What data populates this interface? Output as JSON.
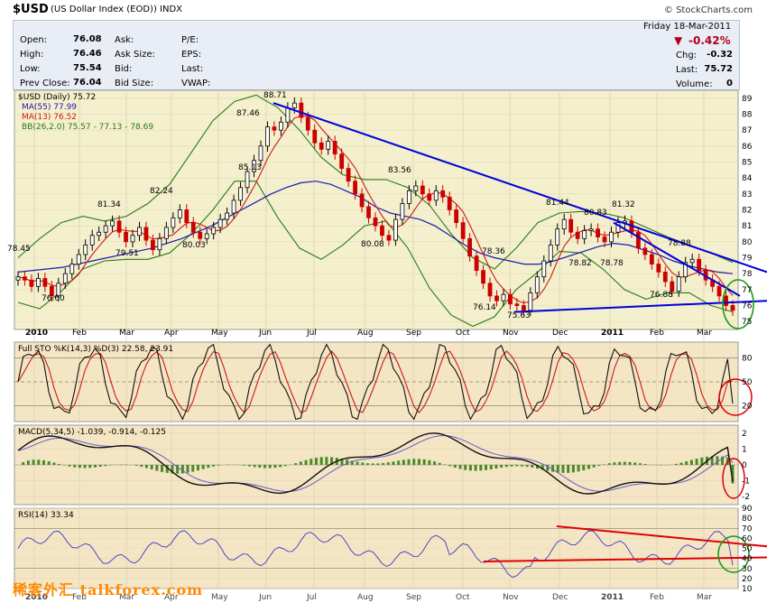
{
  "header": {
    "symbol": "$USD",
    "subtitle": "(US Dollar Index (EOD)) INDX",
    "watermark": "© StockCharts.com"
  },
  "quote": {
    "open_label": "Open:",
    "open": "76.08",
    "high_label": "High:",
    "high": "76.46",
    "low_label": "Low:",
    "low": "75.54",
    "prev_label": "Prev Close:",
    "prev": "76.04",
    "ask_label": "Ask:",
    "ask_size_label": "Ask Size:",
    "bid_label": "Bid:",
    "bid_size_label": "Bid Size:",
    "pe_label": "P/E:",
    "eps_label": "EPS:",
    "last_label2": "Last:",
    "vwap_label": "VWAP:",
    "date": "Friday  18-Mar-2011",
    "change_pct": "-0.42%",
    "chg_label": "Chg:",
    "chg": "-0.32",
    "last_label": "Last:",
    "last": "75.72",
    "volume_label": "Volume:",
    "volume": "0"
  },
  "colors": {
    "price_bg": "#f4efcc",
    "panel_bg": "#f4efcc",
    "ind_bg": "#f4e5c4",
    "up": "#000000",
    "down": "#cc0000",
    "ma55": "#1a1ab4",
    "ma13": "#cc1a1a",
    "bb": "#2a7a1a",
    "trend": "#0000dd",
    "annot": "#e00000",
    "circle_green": "#1a9a1a"
  },
  "watermark_text": "稀客外汇 talkforex.com",
  "chart_data": [
    {
      "type": "candlestick",
      "title": "$USD (Daily) 75.72",
      "legend": [
        "MA(55) 77.99",
        "MA(13) 76.52",
        "BB(26,2.0) 75.57 - 77.13 - 78.69"
      ],
      "ylim": [
        74.5,
        89.5
      ],
      "yticks": [
        75,
        76,
        77,
        78,
        79,
        80,
        81,
        82,
        83,
        84,
        85,
        86,
        87,
        88,
        89
      ],
      "x_labels": [
        "2010",
        "Feb",
        "Mar",
        "Apr",
        "May",
        "Jun",
        "Jul",
        "Aug",
        "Sep",
        "Oct",
        "Nov",
        "Dec",
        "2011",
        "Feb",
        "Mar"
      ],
      "annotations": [
        "78.45",
        "76.60",
        "81.34",
        "82.24",
        "79.51",
        "80.03",
        "87.46",
        "85.13",
        "88.71",
        "83.56",
        "80.08",
        "78.36",
        "76.14",
        "75.63",
        "81.44",
        "80.83",
        "78.82",
        "78.78",
        "81.32",
        "78.88",
        "76.88"
      ],
      "closes": [
        77.8,
        77.6,
        77.2,
        77.7,
        77.2,
        76.6,
        77.4,
        78.0,
        78.6,
        79.2,
        79.8,
        80.4,
        80.6,
        81.0,
        81.3,
        80.6,
        80.0,
        80.4,
        80.9,
        80.1,
        79.5,
        80.2,
        80.9,
        81.5,
        82.0,
        81.2,
        80.6,
        80.2,
        80.5,
        80.9,
        81.4,
        81.8,
        82.6,
        83.4,
        84.4,
        85.1,
        86.0,
        87.2,
        87.0,
        87.5,
        88.4,
        88.7,
        87.8,
        87.0,
        86.2,
        85.8,
        86.3,
        85.5,
        84.6,
        83.8,
        83.0,
        82.2,
        81.5,
        81.0,
        80.4,
        80.1,
        81.4,
        82.4,
        83.2,
        83.5,
        83.0,
        82.6,
        83.2,
        82.8,
        82.0,
        81.2,
        80.2,
        79.1,
        78.2,
        77.4,
        76.6,
        76.3,
        76.7,
        76.1,
        76.0,
        75.7,
        76.8,
        77.8,
        78.8,
        79.8,
        80.8,
        81.4,
        80.6,
        80.2,
        80.7,
        80.8,
        80.3,
        80.0,
        80.6,
        81.2,
        81.3,
        80.6,
        79.6,
        79.2,
        78.6,
        78.1,
        77.5,
        76.9,
        77.8,
        78.7,
        78.9,
        78.2,
        77.6,
        77.2,
        76.6,
        76.0,
        75.7
      ],
      "ma55": [
        78.1,
        78.2,
        78.3,
        78.4,
        78.6,
        78.8,
        79.0,
        79.2,
        79.4,
        79.6,
        79.9,
        80.2,
        80.6,
        81.0,
        81.5,
        82.0,
        82.5,
        83.0,
        83.4,
        83.7,
        83.8,
        83.6,
        83.2,
        82.8,
        82.2,
        81.8,
        81.6,
        81.4,
        81.0,
        80.4,
        79.8,
        79.3,
        79.0,
        78.8,
        78.6,
        78.6,
        78.8,
        79.1,
        79.4,
        79.7,
        79.9,
        79.8,
        79.5,
        79.2,
        78.8,
        78.5,
        78.3,
        78.1,
        78.0
      ],
      "bb_upper": [
        79.0,
        80.2,
        81.2,
        81.6,
        81.3,
        81.6,
        82.4,
        83.6,
        85.6,
        87.6,
        88.8,
        89.2,
        88.4,
        87.0,
        85.3,
        84.2,
        83.9,
        83.9,
        83.4,
        82.3,
        80.5,
        79.0,
        78.3,
        79.6,
        81.2,
        81.8,
        81.9,
        81.8,
        81.5,
        80.9,
        80.3,
        79.8,
        79.3,
        78.7
      ],
      "bb_lower": [
        76.2,
        75.8,
        76.9,
        78.3,
        78.8,
        78.9,
        78.9,
        79.3,
        80.5,
        82.0,
        83.8,
        83.8,
        81.5,
        79.6,
        78.9,
        79.8,
        81.0,
        81.3,
        79.6,
        77.1,
        75.4,
        74.7,
        75.3,
        77.0,
        78.1,
        79.4,
        79.3,
        78.3,
        77.0,
        76.4,
        76.8,
        76.8,
        76.0,
        75.6
      ]
    },
    {
      "type": "line",
      "title": "Full STO %K(14,3) %D(3) 22.58, 23.91",
      "ylim": [
        0,
        100
      ],
      "yticks": [
        20,
        50,
        80
      ],
      "series": [
        {
          "name": "%K"
        },
        {
          "name": "%D"
        }
      ]
    },
    {
      "type": "line",
      "title": "MACD(5,34,5) -1.039, -0.914, -0.125",
      "ylim": [
        -2.5,
        2.5
      ],
      "yticks": [
        -2,
        -1,
        0,
        1,
        2
      ],
      "series": [
        {
          "name": "MACD"
        },
        {
          "name": "Signal"
        },
        {
          "name": "Histogram"
        }
      ]
    },
    {
      "type": "line",
      "title": "RSI(14) 33.34",
      "ylim": [
        10,
        90
      ],
      "yticks": [
        10,
        20,
        30,
        40,
        50,
        60,
        70,
        80,
        90
      ],
      "series": [
        {
          "name": "RSI"
        }
      ]
    }
  ]
}
